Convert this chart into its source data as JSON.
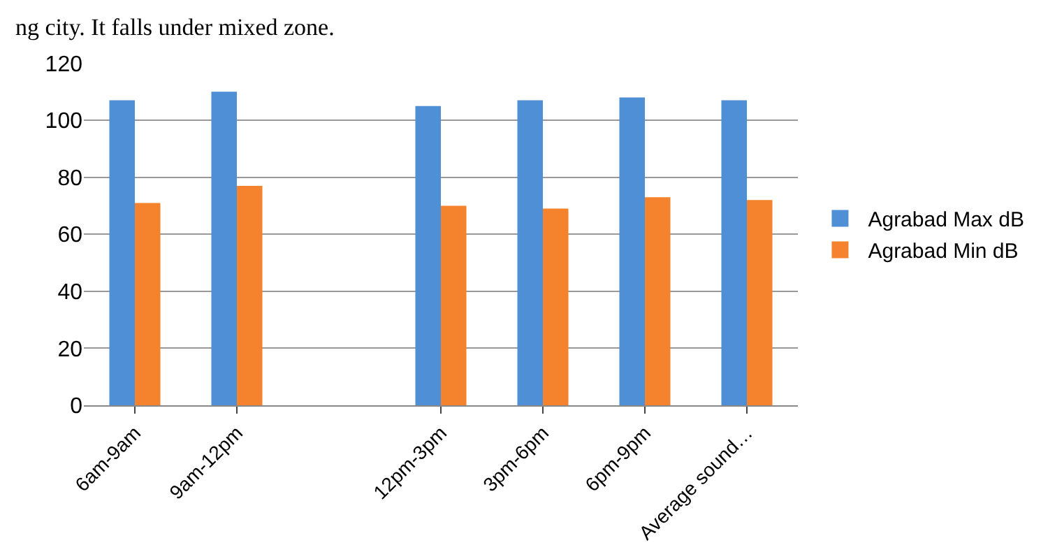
{
  "chart_data": {
    "type": "bar",
    "categories": [
      "6am-9am",
      "9am-12pm",
      null,
      "12pm-3pm",
      "3pm-6pm",
      "6pm-9pm",
      "Average sound…"
    ],
    "series": [
      {
        "name": "Agrabad Max dB",
        "color": "#4f8fd6",
        "values": [
          107,
          110,
          null,
          105,
          107,
          108,
          107
        ]
      },
      {
        "name": "Agrabad Min dB",
        "color": "#f5822c",
        "values": [
          71,
          77,
          null,
          70,
          69,
          73,
          72
        ]
      }
    ],
    "ylim": [
      0,
      120
    ],
    "yticks": [
      0,
      20,
      40,
      60,
      80,
      100,
      120
    ],
    "grid": "y",
    "legend": "right",
    "annotations": [
      "ng city. It falls under mixed zone."
    ]
  }
}
